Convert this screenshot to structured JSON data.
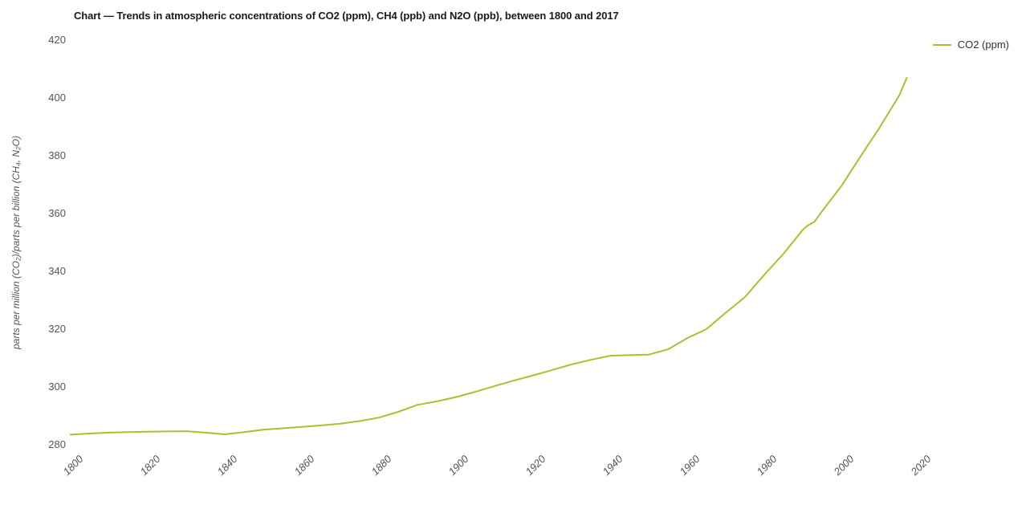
{
  "accent_color": "#b2bd2e",
  "text_colors": {
    "title": "#1a1a1a",
    "ticks": "#545454",
    "legend": "#333333",
    "axis_title": "#555555"
  },
  "chart_data": {
    "type": "line",
    "title": "Chart — Trends in atmospheric concentrations of CO2 (ppm), CH4 (ppb) and N2O (ppb), between 1800 and 2017",
    "xlabel": "",
    "ylabel": "parts per million (CO₂)/parts per billion (CH₄, N₂O)",
    "xlim": [
      1800,
      2020
    ],
    "ylim": [
      280,
      420
    ],
    "x_ticks": [
      1800,
      1820,
      1840,
      1860,
      1880,
      1900,
      1920,
      1940,
      1960,
      1980,
      2000,
      2020
    ],
    "y_ticks": [
      280,
      300,
      320,
      340,
      360,
      380,
      400,
      420
    ],
    "grid": false,
    "legend_position": "top-right",
    "series": [
      {
        "name": "CO2 (ppm)",
        "color": "#b2bd2e",
        "x": [
          1800,
          1805,
          1810,
          1815,
          1820,
          1825,
          1830,
          1835,
          1840,
          1845,
          1850,
          1855,
          1860,
          1865,
          1870,
          1875,
          1880,
          1885,
          1890,
          1895,
          1900,
          1905,
          1910,
          1915,
          1920,
          1925,
          1930,
          1935,
          1940,
          1945,
          1950,
          1955,
          1960,
          1965,
          1970,
          1975,
          1980,
          1985,
          1990,
          1991,
          1992,
          1993,
          1995,
          2000,
          2005,
          2010,
          2015,
          2017
        ],
        "y": [
          283.5,
          283.9,
          284.2,
          284.4,
          284.5,
          284.6,
          284.7,
          284.2,
          283.6,
          284.4,
          285.2,
          285.7,
          286.2,
          286.7,
          287.3,
          288.2,
          289.4,
          291.4,
          293.8,
          295.0,
          296.5,
          298.3,
          300.3,
          302.2,
          304.0,
          305.9,
          307.8,
          309.4,
          310.8,
          311.0,
          311.2,
          313.0,
          316.9,
          320.0,
          325.7,
          331.1,
          338.8,
          346.1,
          354.4,
          355.6,
          356.4,
          357.1,
          360.8,
          369.5,
          379.8,
          389.9,
          400.8,
          407.0
        ]
      }
    ]
  }
}
